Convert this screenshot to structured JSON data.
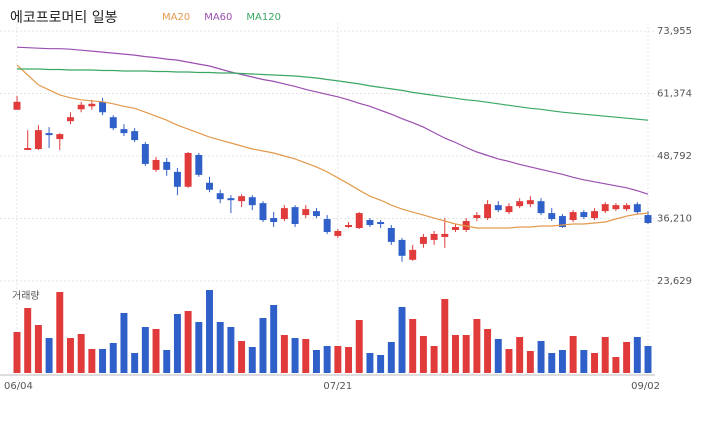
{
  "chart_data": {
    "type": "candlestick",
    "title": "에코프로머티 일봉",
    "categories": [
      "06/04",
      null,
      null,
      null,
      null,
      null,
      null,
      null,
      null,
      null,
      null,
      null,
      null,
      null,
      null,
      null,
      null,
      null,
      null,
      null,
      null,
      null,
      null,
      null,
      null,
      null,
      null,
      null,
      null,
      null,
      "07/21",
      null,
      null,
      null,
      null,
      null,
      null,
      null,
      null,
      null,
      null,
      null,
      null,
      null,
      null,
      null,
      null,
      null,
      null,
      null,
      null,
      null,
      null,
      null,
      null,
      null,
      null,
      null,
      null,
      "09/02"
    ],
    "open": [
      58100,
      50000,
      50200,
      53400,
      52200,
      55800,
      58200,
      58800,
      59700,
      56600,
      54200,
      53800,
      51200,
      46000,
      47600,
      45600,
      42600,
      49000,
      43400,
      41300,
      40300,
      39700,
      40500,
      39300,
      36300,
      36100,
      38500,
      36900,
      37700,
      36100,
      32700,
      34500,
      34300,
      35900,
      35500,
      34300,
      31900,
      27900,
      31100,
      31900,
      32500,
      33900,
      33900,
      36300,
      36300,
      38900,
      37500,
      38700,
      39100,
      39700,
      37300,
      36700,
      35900,
      37500,
      36300,
      37700,
      38100,
      38100,
      39100,
      36900
    ],
    "high": [
      60900,
      54000,
      55000,
      54600,
      53400,
      57600,
      59700,
      60100,
      60500,
      57000,
      55200,
      54400,
      51600,
      48600,
      48400,
      46400,
      49600,
      49400,
      44600,
      42000,
      40900,
      41100,
      40900,
      39700,
      37500,
      38900,
      38900,
      38900,
      38300,
      36900,
      34100,
      35500,
      37500,
      36300,
      35900,
      34900,
      32300,
      30900,
      33100,
      33700,
      36300,
      35100,
      36300,
      37500,
      39900,
      39700,
      39300,
      40300,
      40700,
      40300,
      38300,
      37100,
      37900,
      37900,
      38300,
      39500,
      39300,
      39300,
      39500,
      37700
    ],
    "low": [
      58100,
      50000,
      50000,
      50400,
      50000,
      55200,
      57600,
      58100,
      57000,
      54000,
      52800,
      51600,
      46800,
      45600,
      44800,
      40900,
      42400,
      44600,
      41500,
      39300,
      37300,
      38500,
      37900,
      35500,
      34500,
      35700,
      34500,
      36300,
      36300,
      33100,
      32300,
      34300,
      34100,
      34500,
      34300,
      30900,
      27500,
      27700,
      30300,
      30900,
      30300,
      33500,
      33500,
      35700,
      35900,
      37500,
      37100,
      38300,
      38500,
      36900,
      35700,
      34300,
      35500,
      36100,
      35900,
      37300,
      37700,
      37700,
      37100,
      35100
    ],
    "close": [
      59700,
      50400,
      54000,
      53000,
      53200,
      56600,
      59100,
      59300,
      57600,
      54400,
      53400,
      52000,
      47200,
      48000,
      46000,
      42600,
      49400,
      45000,
      42000,
      40100,
      39900,
      40700,
      38900,
      35900,
      35500,
      38300,
      35100,
      38100,
      36700,
      33500,
      33700,
      34900,
      37300,
      34900,
      35100,
      31500,
      28700,
      29900,
      32500,
      33100,
      33100,
      34500,
      35700,
      36900,
      39100,
      37900,
      38700,
      39700,
      39900,
      37300,
      36100,
      34500,
      37500,
      36500,
      37700,
      39100,
      38900,
      38900,
      37500,
      35300
    ],
    "up_color": "#e03a3a",
    "down_color": "#2f5fc8",
    "ylim": [
      23629,
      73955
    ],
    "yticks": [
      {
        "value": 73955,
        "label": "73,955"
      },
      {
        "value": 61374,
        "label": "61,374"
      },
      {
        "value": 48792,
        "label": "48,792"
      },
      {
        "value": 36210,
        "label": "36,210"
      },
      {
        "value": 23629,
        "label": "23,629"
      }
    ],
    "grid": true,
    "ma": [
      {
        "name": "MA20",
        "color": "#e39a4c",
        "values": [
          67100,
          65100,
          63100,
          62100,
          61100,
          60500,
          60100,
          59900,
          59700,
          59300,
          58800,
          58400,
          57600,
          56800,
          56000,
          55000,
          54200,
          53400,
          52600,
          52000,
          51400,
          50800,
          50200,
          49800,
          49400,
          48800,
          48200,
          47400,
          46600,
          45600,
          44400,
          43200,
          41900,
          40700,
          39900,
          38900,
          38100,
          37500,
          36900,
          36300,
          35700,
          35100,
          34700,
          34300,
          34300,
          34300,
          34300,
          34500,
          34500,
          34700,
          34700,
          34900,
          35100,
          35100,
          35300,
          35500,
          36100,
          36700,
          37100,
          37300
        ]
      },
      {
        "name": "MA60",
        "color": "#9b4fb0",
        "values": [
          70700,
          70600,
          70500,
          70400,
          70400,
          70300,
          70100,
          69900,
          69700,
          69500,
          69300,
          69100,
          68800,
          68600,
          68300,
          68100,
          67700,
          67300,
          66900,
          66300,
          65700,
          65200,
          64700,
          64200,
          63800,
          63300,
          62800,
          62200,
          61700,
          61200,
          60700,
          60100,
          59400,
          58800,
          58000,
          57200,
          56300,
          55500,
          54600,
          53500,
          52400,
          51500,
          50500,
          49600,
          48900,
          48200,
          47700,
          47100,
          46600,
          46100,
          45600,
          45100,
          44500,
          44000,
          43600,
          43200,
          42800,
          42400,
          41800,
          41100
        ]
      },
      {
        "name": "MA120",
        "color": "#3aa864",
        "values": [
          66300,
          66300,
          66300,
          66200,
          66200,
          66100,
          66100,
          66100,
          66000,
          66000,
          65900,
          65900,
          65900,
          65800,
          65800,
          65700,
          65700,
          65600,
          65600,
          65500,
          65500,
          65400,
          65300,
          65200,
          65100,
          65000,
          64900,
          64700,
          64500,
          64200,
          63900,
          63600,
          63300,
          62900,
          62600,
          62300,
          62000,
          61600,
          61300,
          61000,
          60700,
          60400,
          60100,
          59900,
          59600,
          59300,
          59000,
          58700,
          58400,
          58200,
          57900,
          57600,
          57400,
          57200,
          57000,
          56800,
          56600,
          56400,
          56200,
          56000
        ]
      }
    ],
    "volume": {
      "label": "거래량",
      "values": [
        41,
        65,
        48,
        35,
        81,
        35,
        39,
        24,
        24,
        30,
        60,
        20,
        46,
        44,
        23,
        59,
        62,
        51,
        83,
        51,
        46,
        32,
        26,
        55,
        68,
        38,
        35,
        34,
        23,
        27,
        27,
        26,
        53,
        20,
        18,
        31,
        66,
        54,
        37,
        27,
        74,
        38,
        38,
        54,
        44,
        34,
        24,
        36,
        22,
        32,
        20,
        23,
        37,
        23,
        20,
        36,
        16,
        31,
        36,
        27
      ]
    }
  }
}
